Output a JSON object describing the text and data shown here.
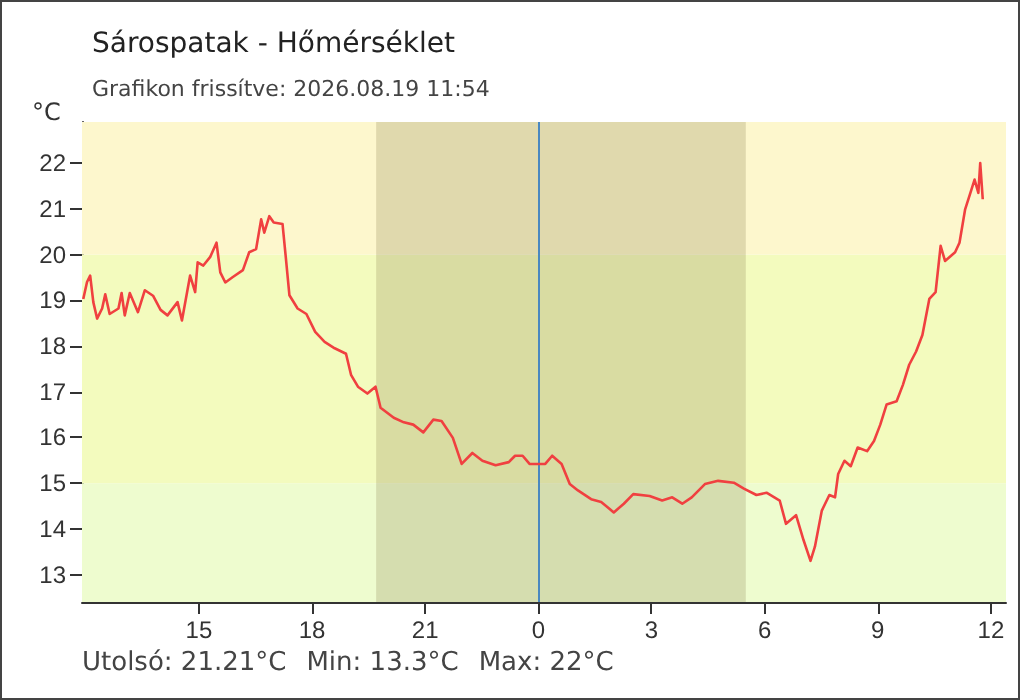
{
  "chart_data": {
    "type": "line",
    "title": "Sárospatak - Hőmérséklet",
    "subtitle": "Grafikon frissítve: 2026.08.19 11:54",
    "ylabel": "°C",
    "annotations": [
      "Utolsó: 21.21°C",
      "Min: 13.3°C",
      "Max: 22°C"
    ],
    "xlim": [
      "2026-08-18T11:54",
      "2026-08-19T12:24"
    ],
    "xticks": [
      {
        "value": "2026-08-18T15:00",
        "label": "15"
      },
      {
        "value": "2026-08-18T18:00",
        "label": "18"
      },
      {
        "value": "2026-08-18T21:00",
        "label": "21"
      },
      {
        "value": "2026-08-19T00:00",
        "label": "0"
      },
      {
        "value": "2026-08-19T03:00",
        "label": "3"
      },
      {
        "value": "2026-08-19T06:00",
        "label": "6"
      },
      {
        "value": "2026-08-19T09:00",
        "label": "9"
      },
      {
        "value": "2026-08-19T12:00",
        "label": "12"
      }
    ],
    "ylim": [
      12.4,
      22.9
    ],
    "yticks": [
      13,
      14,
      15,
      16,
      17,
      18,
      19,
      20,
      21,
      22
    ],
    "grid": false,
    "marker": "none",
    "line_style": "solid",
    "bands": [
      {
        "axis": "y",
        "from": 12.4,
        "to": 15,
        "color": "#eefccf"
      },
      {
        "axis": "y",
        "from": 15,
        "to": 20,
        "color": "#f3fbbe"
      },
      {
        "axis": "y",
        "from": 20,
        "to": 22.9,
        "color": "#fdf7cd"
      },
      {
        "axis": "x",
        "from": "2026-08-18T19:42",
        "to": "2026-08-19T05:30",
        "color": "#8c7f50"
      }
    ],
    "ref_lines": [
      {
        "axis": "x",
        "value": "2026-08-19T00:00",
        "color": "#4a88c0"
      }
    ],
    "series": [
      {
        "color": "#f04040",
        "x": [
          "2026-08-18T11:56",
          "2026-08-18T12:02",
          "2026-08-18T12:07",
          "2026-08-18T12:12",
          "2026-08-18T12:18",
          "2026-08-18T12:26",
          "2026-08-18T12:31",
          "2026-08-18T12:38",
          "2026-08-18T12:52",
          "2026-08-18T12:57",
          "2026-08-18T13:02",
          "2026-08-18T13:10",
          "2026-08-18T13:23",
          "2026-08-18T13:34",
          "2026-08-18T13:47",
          "2026-08-18T13:59",
          "2026-08-18T14:10",
          "2026-08-18T14:26",
          "2026-08-18T14:33",
          "2026-08-18T14:46",
          "2026-08-18T14:54",
          "2026-08-18T14:58",
          "2026-08-18T15:07",
          "2026-08-18T15:18",
          "2026-08-18T15:28",
          "2026-08-18T15:34",
          "2026-08-18T15:42",
          "2026-08-18T15:54",
          "2026-08-18T16:10",
          "2026-08-18T16:20",
          "2026-08-18T16:31",
          "2026-08-18T16:39",
          "2026-08-18T16:44",
          "2026-08-18T16:52",
          "2026-08-18T16:59",
          "2026-08-18T17:13",
          "2026-08-18T17:18",
          "2026-08-18T17:24",
          "2026-08-18T17:37",
          "2026-08-18T17:51",
          "2026-08-18T18:05",
          "2026-08-18T18:20",
          "2026-08-18T18:36",
          "2026-08-18T18:54",
          "2026-08-18T19:02",
          "2026-08-18T19:13",
          "2026-08-18T19:28",
          "2026-08-18T19:41",
          "2026-08-18T19:49",
          "2026-08-18T20:10",
          "2026-08-18T20:26",
          "2026-08-18T20:41",
          "2026-08-18T20:57",
          "2026-08-18T21:13",
          "2026-08-18T21:26",
          "2026-08-18T21:44",
          "2026-08-18T21:58",
          "2026-08-18T22:15",
          "2026-08-18T22:31",
          "2026-08-18T22:52",
          "2026-08-18T23:13",
          "2026-08-18T23:23",
          "2026-08-18T23:35",
          "2026-08-18T23:46",
          "2026-08-19T00:11",
          "2026-08-19T00:22",
          "2026-08-19T00:37",
          "2026-08-19T00:50",
          "2026-08-19T01:03",
          "2026-08-19T01:24",
          "2026-08-19T01:40",
          "2026-08-19T02:00",
          "2026-08-19T02:16",
          "2026-08-19T02:31",
          "2026-08-19T02:57",
          "2026-08-19T03:17",
          "2026-08-19T03:33",
          "2026-08-19T03:49",
          "2026-08-19T04:04",
          "2026-08-19T04:25",
          "2026-08-19T04:46",
          "2026-08-19T05:11",
          "2026-08-19T05:27",
          "2026-08-19T05:47",
          "2026-08-19T06:03",
          "2026-08-19T06:24",
          "2026-08-19T06:34",
          "2026-08-19T06:50",
          "2026-08-19T07:02",
          "2026-08-19T07:13",
          "2026-08-19T07:20",
          "2026-08-19T07:31",
          "2026-08-19T07:43",
          "2026-08-19T07:52",
          "2026-08-19T07:57",
          "2026-08-19T08:07",
          "2026-08-19T08:17",
          "2026-08-19T08:28",
          "2026-08-19T08:43",
          "2026-08-19T08:54",
          "2026-08-19T09:04",
          "2026-08-19T09:14",
          "2026-08-19T09:30",
          "2026-08-19T09:40",
          "2026-08-19T09:50",
          "2026-08-19T10:01",
          "2026-08-19T10:11",
          "2026-08-19T10:22",
          "2026-08-19T10:32",
          "2026-08-19T10:40",
          "2026-08-19T10:47",
          "2026-08-19T11:03",
          "2026-08-19T11:10",
          "2026-08-19T11:19",
          "2026-08-19T11:29",
          "2026-08-19T11:34",
          "2026-08-19T11:40",
          "2026-08-19T11:43",
          "2026-08-19T11:47"
        ],
        "values": [
          19.03,
          19.4,
          19.54,
          18.96,
          18.6,
          18.82,
          19.13,
          18.7,
          18.82,
          19.16,
          18.67,
          19.16,
          18.74,
          19.22,
          19.1,
          18.79,
          18.67,
          18.96,
          18.56,
          19.54,
          19.18,
          19.83,
          19.76,
          19.95,
          20.26,
          19.61,
          19.39,
          19.51,
          19.66,
          20.05,
          20.12,
          20.77,
          20.48,
          20.84,
          20.7,
          20.67,
          19.97,
          19.11,
          18.82,
          18.7,
          18.31,
          18.09,
          17.95,
          17.83,
          17.37,
          17.11,
          16.96,
          17.11,
          16.65,
          16.43,
          16.33,
          16.28,
          16.11,
          16.39,
          16.36,
          15.99,
          15.42,
          15.66,
          15.49,
          15.39,
          15.46,
          15.6,
          15.6,
          15.42,
          15.42,
          15.6,
          15.42,
          14.98,
          14.84,
          14.65,
          14.59,
          14.36,
          14.55,
          14.76,
          14.72,
          14.62,
          14.69,
          14.55,
          14.69,
          14.98,
          15.05,
          15.01,
          14.88,
          14.74,
          14.79,
          14.62,
          14.11,
          14.3,
          13.75,
          13.3,
          13.61,
          14.4,
          14.74,
          14.69,
          15.2,
          15.49,
          15.37,
          15.78,
          15.7,
          15.92,
          16.28,
          16.72,
          16.79,
          17.15,
          17.59,
          17.88,
          18.24,
          19.03,
          19.18,
          20.19,
          19.86,
          20.05,
          20.26,
          20.99,
          21.42,
          21.64,
          21.35,
          22.0,
          21.21
        ]
      }
    ]
  }
}
